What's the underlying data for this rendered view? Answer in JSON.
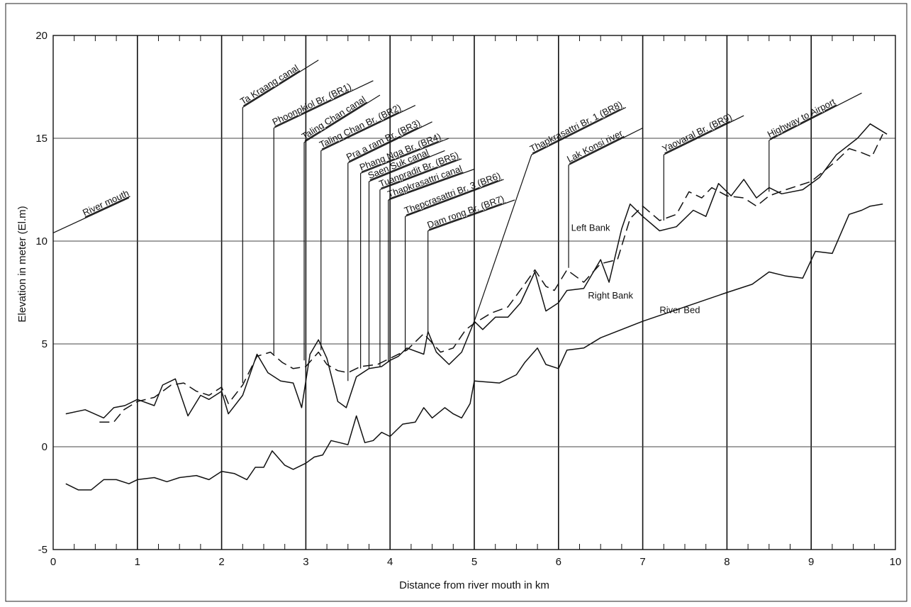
{
  "chart_data": {
    "type": "line",
    "title": "",
    "xlabel": "Distance from river mouth in km",
    "ylabel": "Elevation in meter (El.m)",
    "xlim": [
      0,
      10
    ],
    "ylim": [
      -5,
      20
    ],
    "x_ticks": [
      "0",
      "1",
      "2",
      "3",
      "4",
      "5",
      "6",
      "7",
      "8",
      "9",
      "10"
    ],
    "y_ticks": [
      "-5",
      "0",
      "5",
      "10",
      "15",
      "20"
    ],
    "grid": true,
    "series": [
      {
        "name": "Left Bank",
        "style": "dashed",
        "color": "#111111",
        "points": [
          [
            0.55,
            1.2
          ],
          [
            0.72,
            1.2
          ],
          [
            0.84,
            1.8
          ],
          [
            1.0,
            2.2
          ],
          [
            1.2,
            2.4
          ],
          [
            1.4,
            3.0
          ],
          [
            1.55,
            3.1
          ],
          [
            1.7,
            2.7
          ],
          [
            1.85,
            2.5
          ],
          [
            2.0,
            2.9
          ],
          [
            2.08,
            2.1
          ],
          [
            2.25,
            3.0
          ],
          [
            2.42,
            4.4
          ],
          [
            2.58,
            4.6
          ],
          [
            2.72,
            4.1
          ],
          [
            2.85,
            3.8
          ],
          [
            3.0,
            3.9
          ],
          [
            3.15,
            4.6
          ],
          [
            3.25,
            4.0
          ],
          [
            3.38,
            3.7
          ],
          [
            3.5,
            3.6
          ],
          [
            3.65,
            3.9
          ],
          [
            3.85,
            4.0
          ],
          [
            4.0,
            4.3
          ],
          [
            4.2,
            4.7
          ],
          [
            4.4,
            5.5
          ],
          [
            4.6,
            4.6
          ],
          [
            4.75,
            4.8
          ],
          [
            4.9,
            5.7
          ],
          [
            5.0,
            6.0
          ],
          [
            5.2,
            6.5
          ],
          [
            5.4,
            6.8
          ],
          [
            5.58,
            7.8
          ],
          [
            5.72,
            8.6
          ],
          [
            5.85,
            7.8
          ],
          [
            5.95,
            7.6
          ],
          [
            6.1,
            8.6
          ],
          [
            6.3,
            8.0
          ],
          [
            6.5,
            8.9
          ],
          [
            6.7,
            9.1
          ],
          [
            6.85,
            11.1
          ],
          [
            7.0,
            11.7
          ],
          [
            7.2,
            11.0
          ],
          [
            7.4,
            11.3
          ],
          [
            7.55,
            12.4
          ],
          [
            7.7,
            12.1
          ],
          [
            7.82,
            12.6
          ],
          [
            8.0,
            12.2
          ],
          [
            8.2,
            12.1
          ],
          [
            8.35,
            11.7
          ],
          [
            8.5,
            12.2
          ],
          [
            8.7,
            12.5
          ],
          [
            9.0,
            12.9
          ],
          [
            9.3,
            13.9
          ],
          [
            9.45,
            14.5
          ],
          [
            9.6,
            14.3
          ],
          [
            9.72,
            14.1
          ],
          [
            9.85,
            15.2
          ]
        ]
      },
      {
        "name": "Right Bank",
        "style": "solid",
        "color": "#111111",
        "points": [
          [
            0.15,
            1.6
          ],
          [
            0.38,
            1.8
          ],
          [
            0.6,
            1.4
          ],
          [
            0.72,
            1.9
          ],
          [
            0.85,
            2.0
          ],
          [
            1.0,
            2.3
          ],
          [
            1.2,
            2.0
          ],
          [
            1.3,
            3.0
          ],
          [
            1.45,
            3.3
          ],
          [
            1.6,
            1.5
          ],
          [
            1.75,
            2.5
          ],
          [
            1.85,
            2.3
          ],
          [
            2.0,
            2.7
          ],
          [
            2.08,
            1.6
          ],
          [
            2.25,
            2.5
          ],
          [
            2.42,
            4.5
          ],
          [
            2.55,
            3.6
          ],
          [
            2.7,
            3.2
          ],
          [
            2.85,
            3.1
          ],
          [
            2.95,
            1.9
          ],
          [
            3.05,
            4.5
          ],
          [
            3.15,
            5.2
          ],
          [
            3.25,
            4.3
          ],
          [
            3.38,
            2.2
          ],
          [
            3.48,
            1.9
          ],
          [
            3.6,
            3.4
          ],
          [
            3.75,
            3.8
          ],
          [
            3.9,
            3.9
          ],
          [
            4.0,
            4.2
          ],
          [
            4.1,
            4.4
          ],
          [
            4.2,
            4.8
          ],
          [
            4.4,
            4.5
          ],
          [
            4.45,
            5.6
          ],
          [
            4.55,
            4.6
          ],
          [
            4.7,
            4.0
          ],
          [
            4.85,
            4.6
          ],
          [
            5.0,
            6.1
          ],
          [
            5.1,
            5.7
          ],
          [
            5.25,
            6.3
          ],
          [
            5.4,
            6.3
          ],
          [
            5.55,
            7.0
          ],
          [
            5.72,
            8.5
          ],
          [
            5.85,
            6.6
          ],
          [
            6.0,
            7.0
          ],
          [
            6.1,
            7.6
          ],
          [
            6.3,
            7.7
          ],
          [
            6.5,
            9.1
          ],
          [
            6.6,
            8.0
          ],
          [
            6.75,
            10.6
          ],
          [
            6.85,
            11.8
          ],
          [
            7.0,
            11.2
          ],
          [
            7.2,
            10.5
          ],
          [
            7.4,
            10.7
          ],
          [
            7.6,
            11.5
          ],
          [
            7.75,
            11.2
          ],
          [
            7.9,
            12.8
          ],
          [
            8.05,
            12.2
          ],
          [
            8.2,
            13.0
          ],
          [
            8.35,
            12.1
          ],
          [
            8.5,
            12.6
          ],
          [
            8.65,
            12.3
          ],
          [
            8.9,
            12.5
          ],
          [
            9.1,
            13.1
          ],
          [
            9.3,
            14.2
          ],
          [
            9.55,
            15.0
          ],
          [
            9.7,
            15.7
          ],
          [
            9.9,
            15.2
          ]
        ]
      },
      {
        "name": "River Bed",
        "style": "solid",
        "color": "#111111",
        "points": [
          [
            0.15,
            -1.8
          ],
          [
            0.3,
            -2.1
          ],
          [
            0.45,
            -2.1
          ],
          [
            0.6,
            -1.6
          ],
          [
            0.75,
            -1.6
          ],
          [
            0.9,
            -1.8
          ],
          [
            1.0,
            -1.6
          ],
          [
            1.2,
            -1.5
          ],
          [
            1.35,
            -1.7
          ],
          [
            1.5,
            -1.5
          ],
          [
            1.7,
            -1.4
          ],
          [
            1.85,
            -1.6
          ],
          [
            2.0,
            -1.2
          ],
          [
            2.15,
            -1.3
          ],
          [
            2.3,
            -1.6
          ],
          [
            2.4,
            -1.0
          ],
          [
            2.5,
            -1.0
          ],
          [
            2.6,
            -0.2
          ],
          [
            2.75,
            -0.9
          ],
          [
            2.85,
            -1.1
          ],
          [
            3.0,
            -0.8
          ],
          [
            3.1,
            -0.5
          ],
          [
            3.2,
            -0.4
          ],
          [
            3.3,
            0.3
          ],
          [
            3.4,
            0.2
          ],
          [
            3.5,
            0.1
          ],
          [
            3.6,
            1.5
          ],
          [
            3.7,
            0.2
          ],
          [
            3.8,
            0.3
          ],
          [
            3.9,
            0.7
          ],
          [
            4.0,
            0.5
          ],
          [
            4.15,
            1.1
          ],
          [
            4.3,
            1.2
          ],
          [
            4.4,
            1.9
          ],
          [
            4.5,
            1.4
          ],
          [
            4.65,
            1.9
          ],
          [
            4.75,
            1.6
          ],
          [
            4.85,
            1.4
          ],
          [
            4.95,
            2.1
          ],
          [
            5.0,
            3.2
          ],
          [
            5.3,
            3.1
          ],
          [
            5.5,
            3.5
          ],
          [
            5.6,
            4.1
          ],
          [
            5.75,
            4.8
          ],
          [
            5.85,
            4.0
          ],
          [
            6.0,
            3.8
          ],
          [
            6.1,
            4.7
          ],
          [
            6.3,
            4.8
          ],
          [
            6.5,
            5.3
          ],
          [
            7.0,
            6.1
          ],
          [
            7.5,
            6.8
          ],
          [
            8.0,
            7.5
          ],
          [
            8.3,
            7.9
          ],
          [
            8.5,
            8.5
          ],
          [
            8.7,
            8.3
          ],
          [
            8.9,
            8.2
          ],
          [
            9.05,
            9.5
          ],
          [
            9.25,
            9.4
          ],
          [
            9.45,
            11.3
          ],
          [
            9.6,
            11.5
          ],
          [
            9.7,
            11.7
          ],
          [
            9.85,
            11.8
          ]
        ]
      }
    ],
    "series_labels": [
      {
        "text": "Left Bank",
        "x": 6.15,
        "y": 10.5
      },
      {
        "text": "Right Bank",
        "x": 6.35,
        "y": 7.2
      },
      {
        "text": "River Bed",
        "x": 7.2,
        "y": 6.5
      }
    ],
    "river_mouth": {
      "text": "River mouth",
      "x0": 0.0,
      "y0": 10.4,
      "x1": 0.9,
      "y1": 12.1
    },
    "annotations": [
      {
        "text": "Ta Kraang canal",
        "x": 2.25,
        "y_base": 3.1,
        "y_top": 16.5,
        "x_end": 3.15,
        "y_end": 18.8
      },
      {
        "text": "Phoonpklol Br. (BR1)",
        "x": 2.62,
        "y_base": 4.5,
        "y_top": 15.5,
        "x_end": 3.8,
        "y_end": 17.8
      },
      {
        "text": "Taling Chan canal",
        "x": 2.98,
        "y_base": 4.2,
        "y_top": 14.8,
        "x_end": 3.88,
        "y_end": 17.1
      },
      {
        "text": "Taling Chan Br. (BR2)",
        "x": 3.18,
        "y_base": 4.7,
        "y_top": 14.4,
        "x_end": 4.3,
        "y_end": 16.6
      },
      {
        "text": "Pra a ram Br. (BR3)",
        "x": 3.5,
        "y_base": 3.2,
        "y_top": 13.8,
        "x_end": 4.5,
        "y_end": 15.8
      },
      {
        "text": "Phang Nga Br. (BR4)",
        "x": 3.65,
        "y_base": 3.8,
        "y_top": 13.3,
        "x_end": 4.7,
        "y_end": 15.0
      },
      {
        "text": "Saen Suk canal",
        "x": 3.75,
        "y_base": 3.8,
        "y_top": 12.9,
        "x_end": 4.65,
        "y_end": 14.4
      },
      {
        "text": "Tuanpradit Br. (BR5)",
        "x": 3.88,
        "y_base": 3.9,
        "y_top": 12.5,
        "x_end": 4.85,
        "y_end": 14.0
      },
      {
        "text": "Thapkrasattri canal",
        "x": 3.98,
        "y_base": 4.1,
        "y_top": 12.0,
        "x_end": 5.0,
        "y_end": 13.5
      },
      {
        "text": "Thepcrasattri Br. 3 (BR6)",
        "x": 4.18,
        "y_base": 4.7,
        "y_top": 11.2,
        "x_end": 5.35,
        "y_end": 13.0
      },
      {
        "text": "Dam rong Br. (BR7)",
        "x": 4.45,
        "y_base": 5.5,
        "y_top": 10.5,
        "x_end": 5.48,
        "y_end": 12.0
      },
      {
        "text": "Thapkrasattri Br. 1 (BR8)",
        "x": 5.0,
        "y_base": 6.1,
        "y_top": 14.2,
        "x_end": 6.8,
        "y_end": 16.5,
        "mode": "diag"
      },
      {
        "text": "Lak Konsi river",
        "x": 6.12,
        "y_base": 8.7,
        "y_top": 13.7,
        "x_end": 7.0,
        "y_end": 15.5
      },
      {
        "text": "Yaovaral Br. (BR9)",
        "x": 7.25,
        "y_base": 11.0,
        "y_top": 14.2,
        "x_end": 8.2,
        "y_end": 16.1
      },
      {
        "text": "Highway to Airport",
        "x": 8.5,
        "y_base": 12.4,
        "y_top": 14.9,
        "x_end": 9.6,
        "y_end": 17.2
      }
    ]
  }
}
